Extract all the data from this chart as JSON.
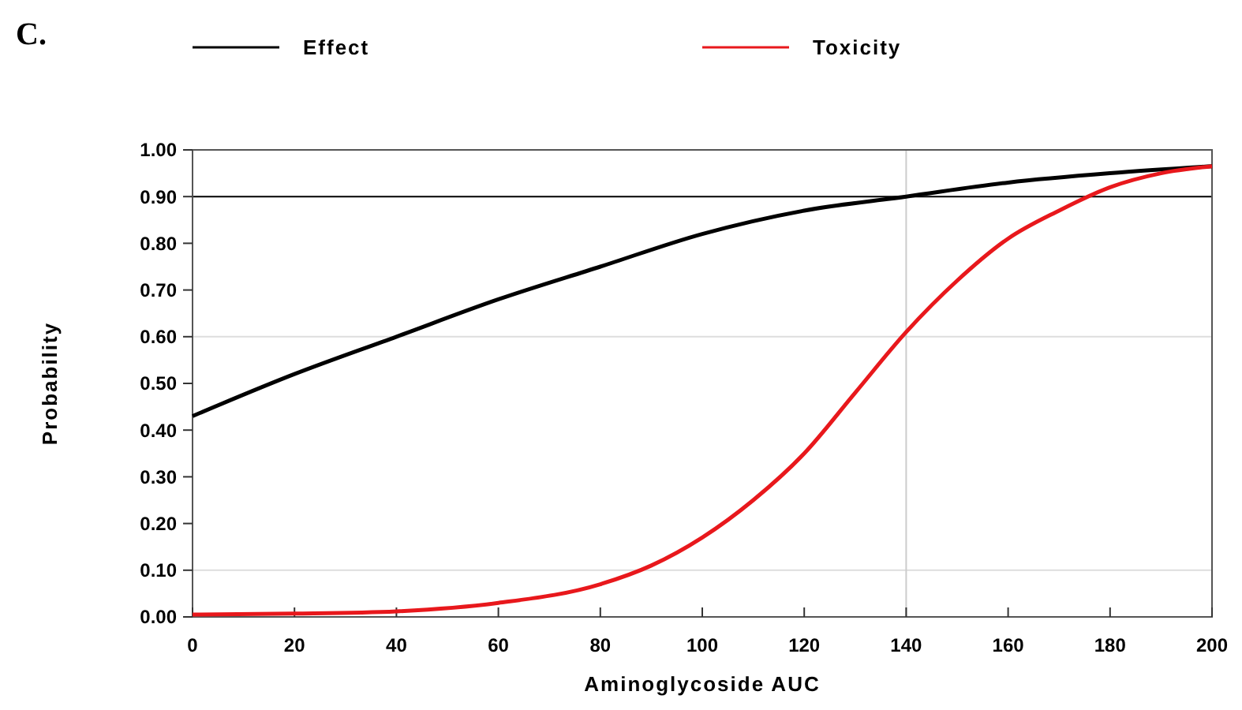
{
  "chart_data": {
    "type": "line",
    "title": "C.",
    "xlabel": "Aminoglycoside  AUC",
    "ylabel": "Probability",
    "legend": "top",
    "grid": false,
    "marker": "none",
    "line_style": "solid",
    "xlim": [
      0,
      200
    ],
    "xticks": [
      0,
      20,
      40,
      60,
      80,
      100,
      120,
      140,
      160,
      180,
      200
    ],
    "ylim": [
      0,
      1
    ],
    "yticks": [
      {
        "value": 0,
        "label": "0.00"
      },
      {
        "value": 0.1,
        "label": "0.10"
      },
      {
        "value": 0.2,
        "label": "0.20"
      },
      {
        "value": 0.3,
        "label": "0.30"
      },
      {
        "value": 0.4,
        "label": "0.40"
      },
      {
        "value": 0.5,
        "label": "0.50"
      },
      {
        "value": 0.6,
        "label": "0.60"
      },
      {
        "value": 0.7,
        "label": "0.70"
      },
      {
        "value": 0.8,
        "label": "0.80"
      },
      {
        "value": 0.9,
        "label": "0.90"
      },
      {
        "value": 1,
        "label": "1.00"
      }
    ],
    "ref_lines": [
      {
        "axis": "y",
        "value": 0.9,
        "color": "#000000"
      },
      {
        "axis": "y",
        "value": 0.6,
        "color": "#dddddd"
      },
      {
        "axis": "y",
        "value": 0.1,
        "color": "#dddddd"
      },
      {
        "axis": "x",
        "value": 140,
        "color": "#cccccc"
      }
    ],
    "series": [
      {
        "name": "Effect",
        "color": "#000000",
        "x": [
          0,
          20,
          40,
          60,
          80,
          100,
          120,
          140,
          160,
          180,
          200
        ],
        "values": [
          0.43,
          0.52,
          0.6,
          0.68,
          0.75,
          0.82,
          0.87,
          0.9,
          0.93,
          0.95,
          0.965
        ]
      },
      {
        "name": "Toxicity",
        "color": "#e8181c",
        "x": [
          0,
          20,
          40,
          60,
          80,
          90,
          100,
          110,
          120,
          130,
          140,
          150,
          160,
          170,
          180,
          190,
          200
        ],
        "values": [
          0.005,
          0.007,
          0.012,
          0.03,
          0.07,
          0.11,
          0.17,
          0.25,
          0.35,
          0.48,
          0.61,
          0.72,
          0.81,
          0.87,
          0.92,
          0.95,
          0.965
        ]
      }
    ]
  }
}
